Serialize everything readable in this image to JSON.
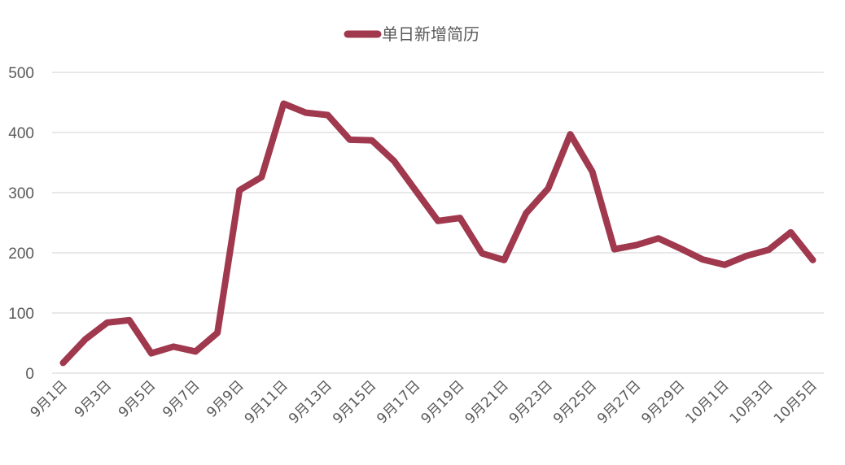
{
  "chart_data": {
    "type": "line",
    "title": "",
    "xlabel": "",
    "ylabel": "",
    "ylim": [
      0,
      500
    ],
    "yticks": [
      "0",
      "100",
      "200",
      "300",
      "400",
      "500"
    ],
    "grid": true,
    "legend_position": "top-center",
    "categories": [
      "9月1日",
      "9月2日",
      "9月3日",
      "9月4日",
      "9月5日",
      "9月6日",
      "9月7日",
      "9月8日",
      "9月9日",
      "9月10日",
      "9月11日",
      "9月12日",
      "9月13日",
      "9月14日",
      "9月15日",
      "9月16日",
      "9月17日",
      "9月18日",
      "9月19日",
      "9月20日",
      "9月21日",
      "9月22日",
      "9月23日",
      "9月24日",
      "9月25日",
      "9月26日",
      "9月27日",
      "9月28日",
      "9月29日",
      "9月30日",
      "10月1日",
      "10月2日",
      "10月3日",
      "10月4日",
      "10月5日"
    ],
    "tick_labels": [
      "9月1日",
      "9月3日",
      "9月5日",
      "9月7日",
      "9月9日",
      "9月11日",
      "9月13日",
      "9月15日",
      "9月17日",
      "9月19日",
      "9月21日",
      "9月23日",
      "9月25日",
      "9月27日",
      "9月29日",
      "10月1日",
      "10月3日",
      "10月5日"
    ],
    "series": [
      {
        "name": "单日新增简历",
        "color": "#a0384e",
        "values": [
          17,
          56,
          84,
          88,
          33,
          44,
          36,
          67,
          304,
          326,
          448,
          433,
          429,
          388,
          387,
          353,
          303,
          253,
          258,
          199,
          188,
          266,
          307,
          397,
          335,
          206,
          213,
          224,
          207,
          189,
          180,
          195,
          205,
          234,
          188
        ]
      }
    ]
  }
}
